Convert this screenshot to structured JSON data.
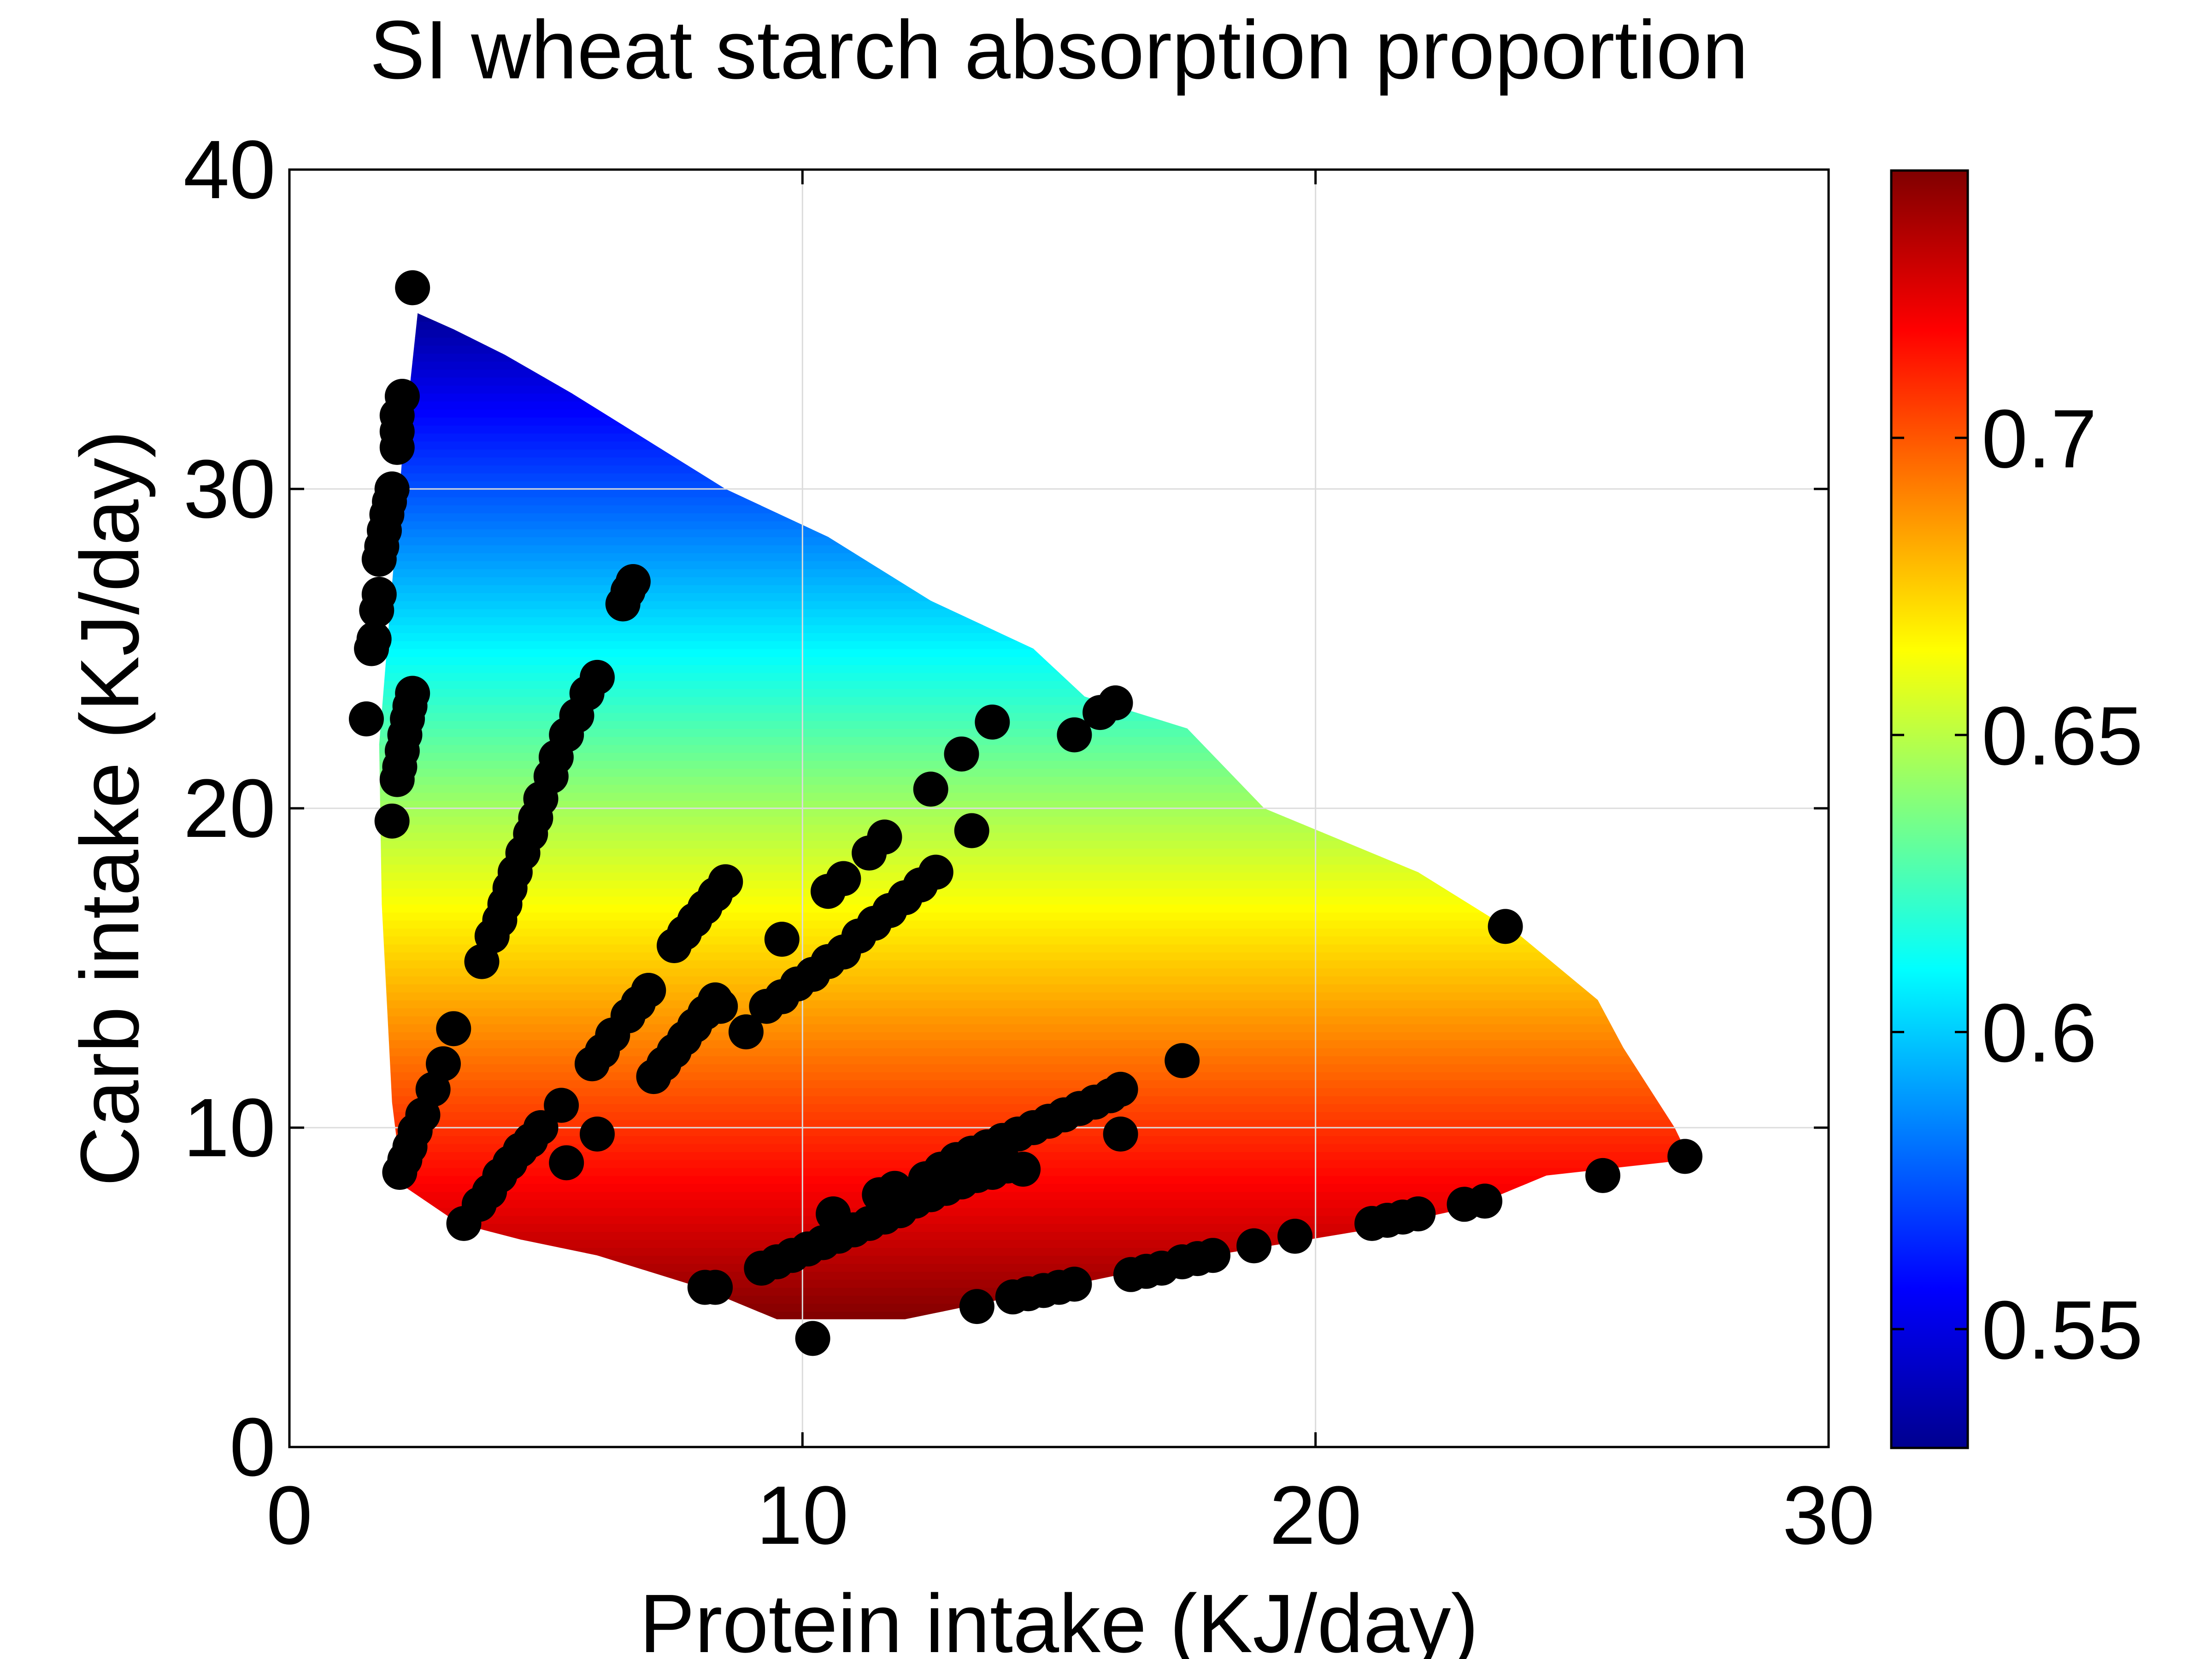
{
  "chart_data": {
    "type": "heatmap",
    "title": "SI wheat starch absorption proportion",
    "xlabel": "Protein intake (KJ/day)",
    "ylabel": "Carb intake (KJ/day)",
    "xlim": [
      0,
      30
    ],
    "ylim": [
      0,
      40
    ],
    "xticks": [
      0,
      10,
      20,
      30
    ],
    "yticks": [
      0,
      10,
      20,
      30,
      40
    ],
    "grid": true,
    "colormap": "jet",
    "colorbar": {
      "range": [
        0.53,
        0.745
      ],
      "ticks": [
        0.55,
        0.6,
        0.65,
        0.7
      ],
      "tick_labels": [
        "0.55",
        "0.6",
        "0.65",
        "0.7"
      ],
      "placement": "right"
    },
    "surface": {
      "color_trend": "value decreases with carb intake",
      "value_at_carb": [
        [
          4,
          0.745
        ],
        [
          20,
          0.645
        ],
        [
          35.5,
          0.535
        ]
      ],
      "boundary": [
        [
          2.5,
          35.5
        ],
        [
          3.2,
          35
        ],
        [
          4.2,
          34.2
        ],
        [
          5.5,
          33
        ],
        [
          6.5,
          32
        ],
        [
          7.5,
          31
        ],
        [
          8.5,
          30
        ],
        [
          10.5,
          28.5
        ],
        [
          11.5,
          27.5
        ],
        [
          12.5,
          26.5
        ],
        [
          14.5,
          25
        ],
        [
          15.5,
          23.5
        ],
        [
          17.5,
          22.5
        ],
        [
          19,
          20
        ],
        [
          22,
          18
        ],
        [
          24,
          16
        ],
        [
          25.5,
          14
        ],
        [
          26,
          12.5
        ],
        [
          27,
          10
        ],
        [
          27.3,
          9
        ],
        [
          24.5,
          8.5
        ],
        [
          23,
          7.5
        ],
        [
          21,
          6.8
        ],
        [
          18,
          6
        ],
        [
          15,
          5
        ],
        [
          12,
          4
        ],
        [
          9.5,
          4
        ],
        [
          8,
          5
        ],
        [
          6,
          6
        ],
        [
          4.5,
          6.5
        ],
        [
          3.3,
          7
        ],
        [
          2.2,
          8.2
        ],
        [
          2,
          10.8
        ],
        [
          1.8,
          17
        ],
        [
          1.75,
          22
        ],
        [
          2,
          27
        ],
        [
          2.2,
          31
        ],
        [
          2.5,
          35.5
        ]
      ]
    },
    "markers": {
      "name": "",
      "color": "#000000",
      "points": [
        [
          2.4,
          36.3
        ],
        [
          2.2,
          32.9
        ],
        [
          2.1,
          32.3
        ],
        [
          2.1,
          31.8
        ],
        [
          2.1,
          31.3
        ],
        [
          2.0,
          30.0
        ],
        [
          1.95,
          29.6
        ],
        [
          1.9,
          29.2
        ],
        [
          1.85,
          28.7
        ],
        [
          1.8,
          28.2
        ],
        [
          1.75,
          27.8
        ],
        [
          1.75,
          26.7
        ],
        [
          1.7,
          26.2
        ],
        [
          1.65,
          25.3
        ],
        [
          1.6,
          25.0
        ],
        [
          1.5,
          22.8
        ],
        [
          2.4,
          23.6
        ],
        [
          2.35,
          23.2
        ],
        [
          2.3,
          22.8
        ],
        [
          2.25,
          22.3
        ],
        [
          2.2,
          21.8
        ],
        [
          2.15,
          21.3
        ],
        [
          2.1,
          20.9
        ],
        [
          2.0,
          19.6
        ],
        [
          6.7,
          27.1
        ],
        [
          6.6,
          26.8
        ],
        [
          6.5,
          26.4
        ],
        [
          6.0,
          24.1
        ],
        [
          5.8,
          23.6
        ],
        [
          5.6,
          22.9
        ],
        [
          5.4,
          22.3
        ],
        [
          5.2,
          21.6
        ],
        [
          5.1,
          21.0
        ],
        [
          4.9,
          20.3
        ],
        [
          4.8,
          19.7
        ],
        [
          4.7,
          19.2
        ],
        [
          4.55,
          18.6
        ],
        [
          4.4,
          18.0
        ],
        [
          4.3,
          17.5
        ],
        [
          4.2,
          17.0
        ],
        [
          4.1,
          16.5
        ],
        [
          3.95,
          16.0
        ],
        [
          3.75,
          15.2
        ],
        [
          3.2,
          13.1
        ],
        [
          3.0,
          12.0
        ],
        [
          2.8,
          11.2
        ],
        [
          2.6,
          10.4
        ],
        [
          2.45,
          9.9
        ],
        [
          2.35,
          9.4
        ],
        [
          2.25,
          9.0
        ],
        [
          2.15,
          8.6
        ],
        [
          3.4,
          7.0
        ],
        [
          3.7,
          7.6
        ],
        [
          3.9,
          8.0
        ],
        [
          4.1,
          8.5
        ],
        [
          4.3,
          8.9
        ],
        [
          4.5,
          9.3
        ],
        [
          4.7,
          9.6
        ],
        [
          4.9,
          10.0
        ],
        [
          5.3,
          10.7
        ],
        [
          5.4,
          8.9
        ],
        [
          6.0,
          9.8
        ],
        [
          5.9,
          12.0
        ],
        [
          6.1,
          12.4
        ],
        [
          6.3,
          12.9
        ],
        [
          6.6,
          13.5
        ],
        [
          6.8,
          13.9
        ],
        [
          7.0,
          14.3
        ],
        [
          7.1,
          11.6
        ],
        [
          7.3,
          12.0
        ],
        [
          7.5,
          12.4
        ],
        [
          7.7,
          12.8
        ],
        [
          7.9,
          13.2
        ],
        [
          8.1,
          13.6
        ],
        [
          8.3,
          14.0
        ],
        [
          8.4,
          13.8
        ],
        [
          7.5,
          15.7
        ],
        [
          7.7,
          16.1
        ],
        [
          7.9,
          16.5
        ],
        [
          8.1,
          16.9
        ],
        [
          8.3,
          17.3
        ],
        [
          8.5,
          17.7
        ],
        [
          8.1,
          5.0
        ],
        [
          8.3,
          5.0
        ],
        [
          8.9,
          13.0
        ],
        [
          9.6,
          15.9
        ],
        [
          10.2,
          3.4
        ],
        [
          9.3,
          13.8
        ],
        [
          9.6,
          14.1
        ],
        [
          9.9,
          14.5
        ],
        [
          10.2,
          14.8
        ],
        [
          10.5,
          15.2
        ],
        [
          10.8,
          15.5
        ],
        [
          11.1,
          16.0
        ],
        [
          11.4,
          16.4
        ],
        [
          11.7,
          16.8
        ],
        [
          12.0,
          17.2
        ],
        [
          12.3,
          17.6
        ],
        [
          12.6,
          18.0
        ],
        [
          10.5,
          17.4
        ],
        [
          10.8,
          17.8
        ],
        [
          11.3,
          18.6
        ],
        [
          11.6,
          19.1
        ],
        [
          12.5,
          20.6
        ],
        [
          13.1,
          21.7
        ],
        [
          13.3,
          19.3
        ],
        [
          13.7,
          22.7
        ],
        [
          15.3,
          22.3
        ],
        [
          15.8,
          23.0
        ],
        [
          16.1,
          23.3
        ],
        [
          9.2,
          5.6
        ],
        [
          9.5,
          5.8
        ],
        [
          9.8,
          6.0
        ],
        [
          10.1,
          6.2
        ],
        [
          10.4,
          6.4
        ],
        [
          10.7,
          6.6
        ],
        [
          11.0,
          6.8
        ],
        [
          11.3,
          7.0
        ],
        [
          11.6,
          7.2
        ],
        [
          11.9,
          7.4
        ],
        [
          12.2,
          7.7
        ],
        [
          12.5,
          7.9
        ],
        [
          12.8,
          8.1
        ],
        [
          13.1,
          8.3
        ],
        [
          13.4,
          8.5
        ],
        [
          13.7,
          8.6
        ],
        [
          14.0,
          8.8
        ],
        [
          14.3,
          8.7
        ],
        [
          10.6,
          7.3
        ],
        [
          11.5,
          7.9
        ],
        [
          11.8,
          8.1
        ],
        [
          12.4,
          8.4
        ],
        [
          12.7,
          8.7
        ],
        [
          13.0,
          9.0
        ],
        [
          13.3,
          9.2
        ],
        [
          13.6,
          9.4
        ],
        [
          13.9,
          9.6
        ],
        [
          14.2,
          9.8
        ],
        [
          14.5,
          10.0
        ],
        [
          14.8,
          10.2
        ],
        [
          15.1,
          10.4
        ],
        [
          15.4,
          10.6
        ],
        [
          15.7,
          10.8
        ],
        [
          16.0,
          11.0
        ],
        [
          16.2,
          11.2
        ],
        [
          16.2,
          9.8
        ],
        [
          17.4,
          12.1
        ],
        [
          13.4,
          4.4
        ],
        [
          14.1,
          4.7
        ],
        [
          14.4,
          4.8
        ],
        [
          14.7,
          4.9
        ],
        [
          15.0,
          5.0
        ],
        [
          15.3,
          5.1
        ],
        [
          16.4,
          5.4
        ],
        [
          16.7,
          5.5
        ],
        [
          17.0,
          5.6
        ],
        [
          17.4,
          5.8
        ],
        [
          17.7,
          5.9
        ],
        [
          18.0,
          6.0
        ],
        [
          18.8,
          6.3
        ],
        [
          19.6,
          6.6
        ],
        [
          21.1,
          7.0
        ],
        [
          21.4,
          7.1
        ],
        [
          21.7,
          7.2
        ],
        [
          22.0,
          7.3
        ],
        [
          22.9,
          7.6
        ],
        [
          23.3,
          7.7
        ],
        [
          23.7,
          16.3
        ],
        [
          25.6,
          8.5
        ],
        [
          27.2,
          9.1
        ]
      ]
    }
  }
}
